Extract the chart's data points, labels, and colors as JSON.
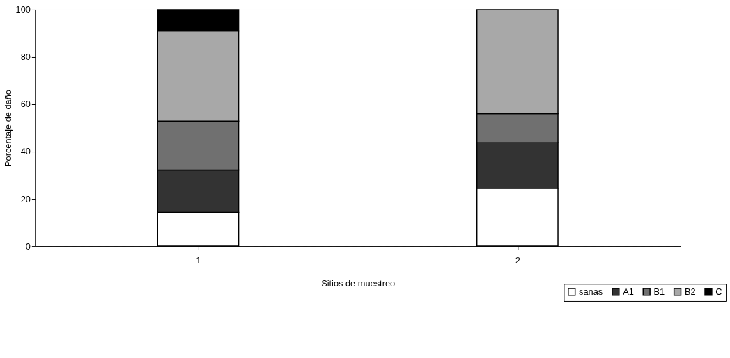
{
  "chart_data": {
    "type": "bar",
    "stacked": true,
    "xlabel": "Sitios de muestreo",
    "ylabel": "Porcentaje de daño",
    "categories": [
      "1",
      "2"
    ],
    "series": [
      {
        "name": "sanas",
        "color": "#ffffff",
        "values": [
          14.3,
          24.5
        ]
      },
      {
        "name": "A1",
        "color": "#333333",
        "values": [
          17.9,
          19.3
        ]
      },
      {
        "name": "B1",
        "color": "#707070",
        "values": [
          20.7,
          12.2
        ]
      },
      {
        "name": "B2",
        "color": "#a8a8a8",
        "values": [
          38.1,
          44.0
        ]
      },
      {
        "name": "C",
        "color": "#000000",
        "values": [
          9.0,
          null
        ]
      }
    ],
    "ylim": [
      0,
      100
    ],
    "yticks": [
      0,
      20,
      40,
      60,
      80,
      100
    ],
    "grid": "y",
    "legend": "bottom right"
  }
}
